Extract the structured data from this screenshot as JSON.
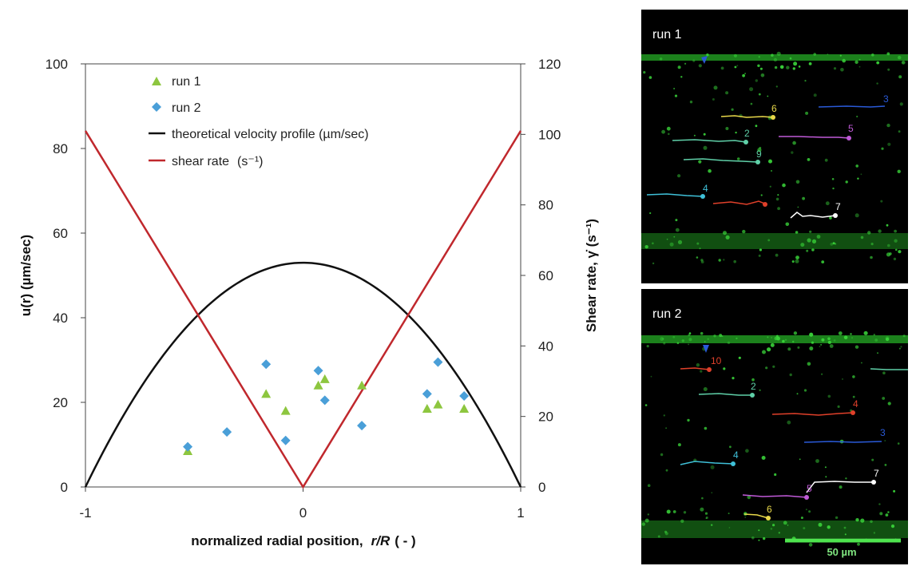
{
  "chart_data": {
    "type": "scatter",
    "xlabel": "normalized radial position,",
    "xlabel_var": "r/R",
    "xlabel_unit": "( - )",
    "ylabel": "u(r) (µm/sec)",
    "y2label": "Shear rate, γ̇ (s⁻¹)",
    "xlim": [
      -1,
      1
    ],
    "ylim": [
      0,
      100
    ],
    "y2lim": [
      0,
      120
    ],
    "xticks": [
      "-1",
      "0",
      "1"
    ],
    "yticks": [
      "0",
      "20",
      "40",
      "60",
      "80",
      "100"
    ],
    "y2ticks": [
      "0",
      "20",
      "40",
      "60",
      "80",
      "100",
      "120"
    ],
    "legend_placement": "top-left",
    "grid": false,
    "series": [
      {
        "name": "run 1",
        "marker": "triangle",
        "color": "#8dc63f",
        "x": [
          -0.53,
          -0.17,
          -0.08,
          0.07,
          0.1,
          0.27,
          0.57,
          0.62,
          0.74
        ],
        "y": [
          8.5,
          22,
          18,
          24,
          25.5,
          24,
          18.5,
          19.5,
          18.5
        ]
      },
      {
        "name": "run 2",
        "marker": "diamond",
        "color": "#4a9fd8",
        "x": [
          -0.53,
          -0.35,
          -0.17,
          -0.08,
          0.07,
          0.1,
          0.27,
          0.57,
          0.62,
          0.74
        ],
        "y": [
          9.5,
          13,
          29,
          11,
          27.5,
          20.5,
          14.5,
          22,
          29.5,
          21.5
        ]
      },
      {
        "name": "theoretical velocity profile (µm/sec)",
        "type": "line",
        "color": "#111111",
        "formula": "u = 53 (1 - (r/R)^2)",
        "umax": 53
      },
      {
        "name": "shear rate",
        "name_unit": "(s⁻¹)",
        "type": "line",
        "axis": "y2",
        "color": "#c0282d",
        "x": [
          -1,
          0,
          1
        ],
        "y": [
          101,
          0,
          101
        ]
      }
    ]
  },
  "panels": [
    {
      "label": "run 1",
      "tracks": [
        {
          "num": "6",
          "color": "#e8d84a"
        },
        {
          "num": "2",
          "color": "#5fd0a8"
        },
        {
          "num": "9",
          "color": "#5fd0a8"
        },
        {
          "num": "5",
          "color": "#c05ad8"
        },
        {
          "num": "4",
          "color": "#3fc0d8"
        },
        {
          "num": "7",
          "color": "#ffffff"
        },
        {
          "num": "3",
          "color": "#2a5ad8"
        },
        {
          "num": "10",
          "color": "#e0402a"
        }
      ]
    },
    {
      "label": "run 2",
      "tracks": [
        {
          "num": "10",
          "color": "#e0402a"
        },
        {
          "num": "2",
          "color": "#5fd0a8"
        },
        {
          "num": "4",
          "color": "#e0402a"
        },
        {
          "num": "3",
          "color": "#2a5ad8"
        },
        {
          "num": "4",
          "color": "#3fc0d8"
        },
        {
          "num": "7",
          "color": "#ffffff"
        },
        {
          "num": "5",
          "color": "#c05ad8"
        },
        {
          "num": "6",
          "color": "#e8d84a"
        }
      ]
    }
  ],
  "scale_bar": {
    "label": "50 µm",
    "color": "#4ee44e"
  },
  "colors": {
    "panel_bg": "#000000",
    "channel_green": "#3ad63a"
  }
}
